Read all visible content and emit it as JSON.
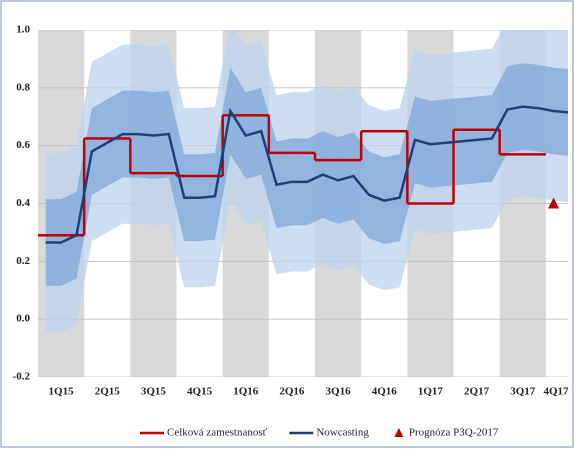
{
  "chart_data": {
    "type": "line",
    "categories": [
      null,
      "1Q15",
      null,
      null,
      "2Q15",
      null,
      null,
      "3Q15",
      null,
      null,
      "4Q15",
      null,
      null,
      "1Q16",
      null,
      null,
      "2Q16",
      null,
      null,
      "3Q16",
      null,
      null,
      "4Q16",
      null,
      null,
      "1Q17",
      null,
      null,
      "2Q17",
      null,
      null,
      "3Q17",
      null,
      null,
      "4Q17",
      null
    ],
    "ylim": [
      -0.2,
      1.0
    ],
    "yticks": [
      -0.2,
      {
        "value": 0,
        "label": "0.0"
      },
      0.2,
      0.4,
      0.6,
      0.8,
      {
        "value": 1,
        "label": "1.0"
      }
    ],
    "grid": true,
    "series": [
      {
        "name": "Celková zamestnanosť",
        "color": "#c00000",
        "step": true,
        "values": [
          0.29,
          0.29,
          0.29,
          0.625,
          0.625,
          0.625,
          0.505,
          0.505,
          0.505,
          0.495,
          0.495,
          0.495,
          0.705,
          0.705,
          0.705,
          0.575,
          0.575,
          0.575,
          0.55,
          0.55,
          0.55,
          0.65,
          0.65,
          0.65,
          0.4,
          0.4,
          0.4,
          0.655,
          0.655,
          0.655,
          0.57,
          0.57,
          0.57,
          null,
          null,
          null
        ]
      },
      {
        "name": "Nowcasting",
        "color": "#1f3f7a",
        "values": [
          0.265,
          0.265,
          0.29,
          0.58,
          0.61,
          0.64,
          0.64,
          0.635,
          0.64,
          0.42,
          0.42,
          0.425,
          0.72,
          0.635,
          0.65,
          0.465,
          0.475,
          0.475,
          0.5,
          0.48,
          0.495,
          0.43,
          0.41,
          0.42,
          0.62,
          0.605,
          0.61,
          0.615,
          0.62,
          0.625,
          0.725,
          0.735,
          0.73,
          0.72,
          0.715,
          null
        ]
      },
      {
        "name": "Prognóza P3Q-2017",
        "color": "#c00000",
        "marker": "triangle",
        "values": [
          null,
          null,
          null,
          null,
          null,
          null,
          null,
          null,
          null,
          null,
          null,
          null,
          null,
          null,
          null,
          null,
          null,
          null,
          null,
          null,
          null,
          null,
          null,
          null,
          null,
          null,
          null,
          null,
          null,
          null,
          null,
          null,
          null,
          0.4,
          null,
          null
        ]
      }
    ],
    "bands": [
      {
        "color": "#bcd3ee",
        "lower": [
          -0.045,
          -0.045,
          -0.02,
          0.27,
          0.3,
          0.33,
          0.33,
          0.325,
          0.33,
          0.11,
          0.11,
          0.115,
          0.41,
          0.325,
          0.34,
          0.155,
          0.165,
          0.165,
          0.19,
          0.17,
          0.185,
          0.12,
          0.1,
          0.11,
          0.31,
          0.295,
          0.3,
          0.305,
          0.31,
          0.315,
          0.415,
          0.425,
          0.42,
          0.41,
          0.405,
          null
        ],
        "upper": [
          0.575,
          0.575,
          0.6,
          0.89,
          0.92,
          0.95,
          0.95,
          0.945,
          0.95,
          0.73,
          0.73,
          0.735,
          1.03,
          0.945,
          0.96,
          0.775,
          0.785,
          0.785,
          0.81,
          0.79,
          0.805,
          0.74,
          0.72,
          0.73,
          0.93,
          0.915,
          0.92,
          0.925,
          0.93,
          0.935,
          1.035,
          1.045,
          1.04,
          1.03,
          1.025,
          null
        ]
      },
      {
        "color": "#7ea7da",
        "lower": [
          0.115,
          0.115,
          0.14,
          0.43,
          0.46,
          0.49,
          0.49,
          0.485,
          0.49,
          0.27,
          0.27,
          0.275,
          0.57,
          0.485,
          0.5,
          0.315,
          0.325,
          0.325,
          0.35,
          0.33,
          0.345,
          0.28,
          0.26,
          0.27,
          0.47,
          0.455,
          0.46,
          0.465,
          0.47,
          0.475,
          0.575,
          0.585,
          0.58,
          0.57,
          0.565,
          null
        ],
        "upper": [
          0.415,
          0.415,
          0.44,
          0.73,
          0.76,
          0.79,
          0.79,
          0.785,
          0.79,
          0.57,
          0.57,
          0.575,
          0.87,
          0.785,
          0.8,
          0.615,
          0.625,
          0.625,
          0.65,
          0.63,
          0.645,
          0.58,
          0.56,
          0.57,
          0.77,
          0.755,
          0.76,
          0.765,
          0.77,
          0.775,
          0.875,
          0.885,
          0.88,
          0.87,
          0.865,
          null
        ]
      }
    ]
  }
}
